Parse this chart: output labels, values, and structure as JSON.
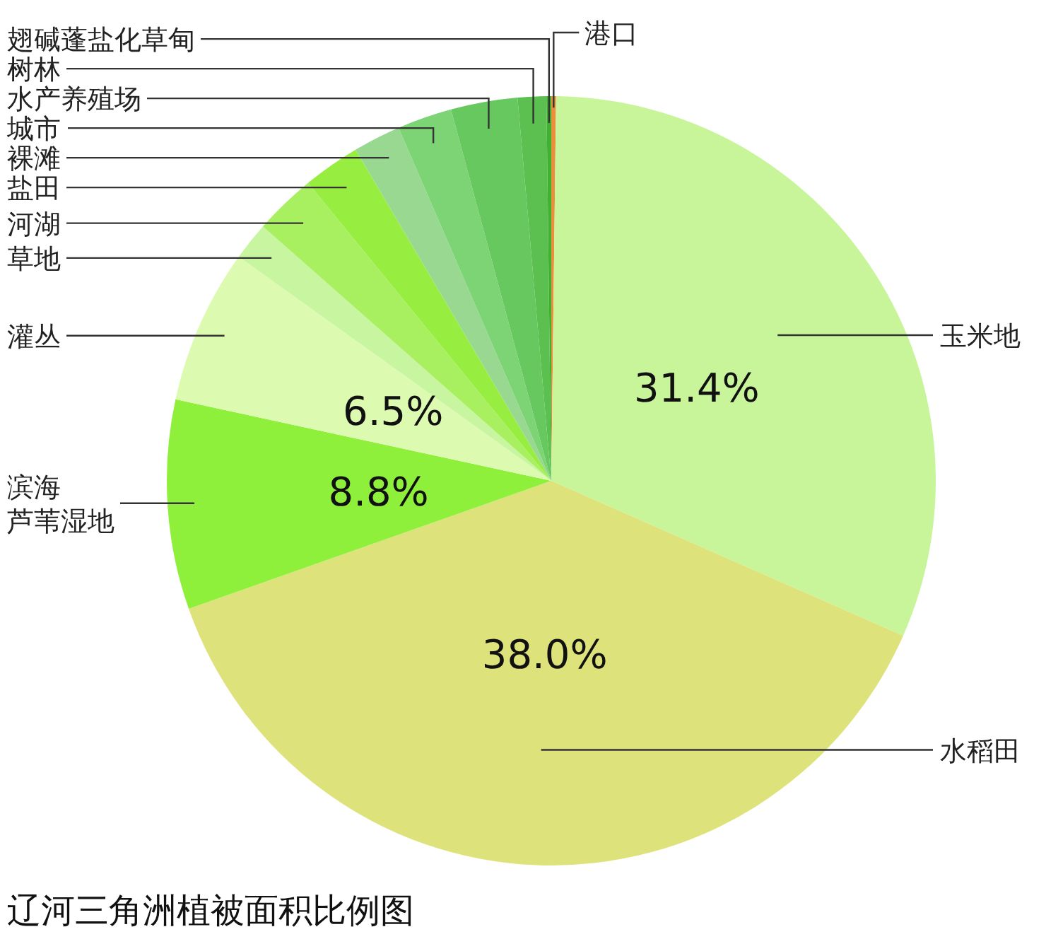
{
  "chart_data": {
    "type": "pie",
    "title": "辽河三角洲植被面积比例图",
    "categories": [
      "港口",
      "玉米地",
      "水稻田",
      "滨海芦苇湿地",
      "灌丛",
      "草地",
      "河湖",
      "盐田",
      "裸滩",
      "城市",
      "水产养殖场",
      "树林",
      "翅碱蓬盐化草甸"
    ],
    "values": [
      0.2,
      31.4,
      38.0,
      8.8,
      6.5,
      1.6,
      2.6,
      2.4,
      2.0,
      2.3,
      2.8,
      1.2,
      0.2
    ],
    "colors": [
      "#e8903a",
      "#c8f59a",
      "#dde27a",
      "#8ef03a",
      "#ddfbb0",
      "#c8f5a0",
      "#a8f060",
      "#98ee40",
      "#98d890",
      "#7cd474",
      "#68c860",
      "#5cc050",
      "#40b030"
    ],
    "value_labels": [
      null,
      "31.4%",
      "38.0%",
      "8.8%",
      "6.5%",
      null,
      null,
      null,
      null,
      null,
      null,
      null,
      null
    ]
  }
}
